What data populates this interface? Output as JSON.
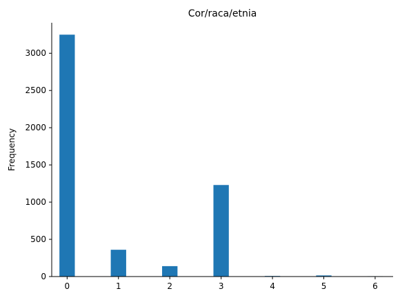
{
  "chart_data": {
    "type": "bar",
    "title": "Cor/raca/etnia",
    "xlabel": "",
    "ylabel": "Frequency",
    "x": [
      0,
      1,
      2,
      3,
      4,
      5,
      6
    ],
    "values": [
      3250,
      360,
      140,
      1230,
      8,
      15,
      5
    ],
    "bar_width": 0.3,
    "xlim": [
      -0.3,
      6.35
    ],
    "ylim": [
      0,
      3410
    ],
    "xticks": [
      0,
      1,
      2,
      3,
      4,
      5,
      6
    ],
    "yticks": [
      0,
      500,
      1000,
      1500,
      2000,
      2500,
      3000
    ],
    "grid": false,
    "color": "#1f77b4"
  }
}
